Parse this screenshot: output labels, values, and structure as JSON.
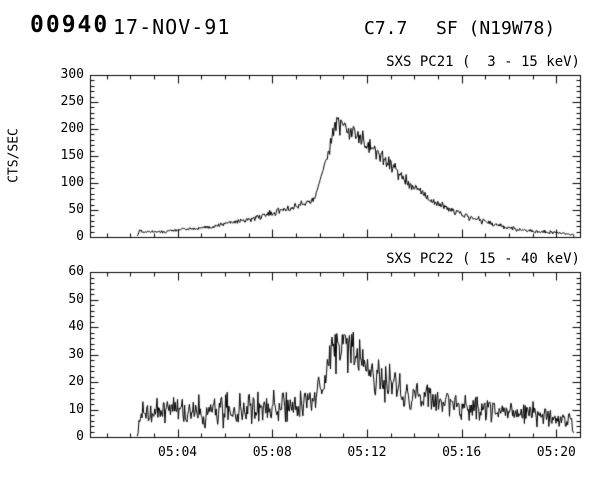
{
  "header": {
    "flare_id": "00940",
    "date": "17-NOV-91",
    "goes_class": "C7.7",
    "flare_type_position": "SF (N19W78)"
  },
  "chart_data": [
    {
      "type": "line",
      "title": "SXS PC21 (  3 - 15 keV)",
      "ylabel": "CTS/SEC",
      "ylim": [
        0,
        300
      ],
      "yticks": [
        0,
        50,
        100,
        150,
        200,
        250,
        300
      ],
      "ytick_labels": [
        "0",
        "50",
        "100",
        "150",
        "200",
        "250",
        "300"
      ],
      "y_minor_step": 10,
      "xlim_minutes": [
        0.3,
        21.0
      ],
      "x_units": "minutes after 05:00 UT",
      "xticks_minutes": [
        4,
        8,
        12,
        16,
        20
      ],
      "xtick_labels": [
        "05:04",
        "05:08",
        "05:12",
        "05:16",
        "05:20"
      ],
      "x_minor_step": 1,
      "show_x_labels": false,
      "grid": false,
      "series": [
        {
          "name": "SXS PC21 count rate",
          "envelope_t_value_noise": [
            [
              2.3,
              1,
              1
            ],
            [
              2.4,
              13,
              2
            ],
            [
              2.55,
              8,
              2
            ],
            [
              3.0,
              10,
              3
            ],
            [
              3.5,
              11,
              3
            ],
            [
              4.0,
              13,
              3
            ],
            [
              4.5,
              15,
              3
            ],
            [
              5.0,
              17,
              3
            ],
            [
              5.5,
              20,
              4
            ],
            [
              6.0,
              24,
              4
            ],
            [
              6.5,
              28,
              4
            ],
            [
              7.0,
              33,
              5
            ],
            [
              7.5,
              38,
              5
            ],
            [
              8.0,
              44,
              5
            ],
            [
              8.5,
              50,
              6
            ],
            [
              9.0,
              57,
              6
            ],
            [
              9.5,
              65,
              6
            ],
            [
              9.8,
              72,
              4
            ],
            [
              9.95,
              95,
              1
            ],
            [
              10.25,
              140,
              2
            ],
            [
              10.4,
              165,
              12
            ],
            [
              10.6,
              195,
              15
            ],
            [
              10.75,
              215,
              14
            ],
            [
              10.9,
              198,
              16
            ],
            [
              11.05,
              207,
              15
            ],
            [
              11.2,
              192,
              15
            ],
            [
              11.5,
              196,
              14
            ],
            [
              11.8,
              183,
              14
            ],
            [
              12.1,
              172,
              13
            ],
            [
              12.4,
              158,
              13
            ],
            [
              12.8,
              143,
              12
            ],
            [
              13.2,
              125,
              11
            ],
            [
              13.6,
              108,
              10
            ],
            [
              14.0,
              92,
              9
            ],
            [
              14.4,
              78,
              8
            ],
            [
              14.8,
              67,
              8
            ],
            [
              15.2,
              58,
              7
            ],
            [
              15.6,
              49,
              6
            ],
            [
              16.0,
              42,
              6
            ],
            [
              16.5,
              35,
              5
            ],
            [
              17.0,
              28,
              5
            ],
            [
              17.5,
              22,
              4
            ],
            [
              18.0,
              17,
              4
            ],
            [
              18.5,
              13,
              3
            ],
            [
              19.0,
              10,
              3
            ],
            [
              19.5,
              9,
              3
            ],
            [
              20.0,
              8,
              2
            ],
            [
              20.4,
              6,
              2
            ],
            [
              20.6,
              5,
              2
            ],
            [
              20.72,
              4,
              1
            ],
            [
              20.75,
              0,
              0
            ]
          ]
        }
      ]
    },
    {
      "type": "line",
      "title": "SXS PC22 ( 15 - 40 keV)",
      "ylabel": "",
      "ylim": [
        0,
        60
      ],
      "yticks": [
        0,
        10,
        20,
        30,
        40,
        50,
        60
      ],
      "ytick_labels": [
        "0",
        "10",
        "20",
        "30",
        "40",
        "50",
        "60"
      ],
      "y_minor_step": 2,
      "xlim_minutes": [
        0.3,
        21.0
      ],
      "x_units": "minutes after 05:00 UT",
      "xticks_minutes": [
        4,
        8,
        12,
        16,
        20
      ],
      "xtick_labels": [
        "05:04",
        "05:08",
        "05:12",
        "05:16",
        "05:20"
      ],
      "x_minor_step": 1,
      "show_x_labels": true,
      "grid": false,
      "series": [
        {
          "name": "SXS PC22 count rate",
          "envelope_t_value_noise": [
            [
              2.3,
              1,
              1
            ],
            [
              2.45,
              9,
              3
            ],
            [
              3.0,
              9,
              4
            ],
            [
              3.5,
              10,
              4
            ],
            [
              4.0,
              10,
              4
            ],
            [
              4.5,
              9,
              4
            ],
            [
              5.0,
              10,
              5
            ],
            [
              5.5,
              9,
              5
            ],
            [
              6.0,
              10,
              5
            ],
            [
              6.5,
              10,
              5
            ],
            [
              7.0,
              11,
              5
            ],
            [
              7.5,
              11,
              5
            ],
            [
              8.0,
              11,
              5
            ],
            [
              8.5,
              12,
              5
            ],
            [
              9.0,
              12,
              5
            ],
            [
              9.5,
              13,
              5
            ],
            [
              9.85,
              14,
              3
            ],
            [
              9.95,
              21,
              1
            ],
            [
              10.1,
              15,
              1
            ],
            [
              10.3,
              24,
              4
            ],
            [
              10.5,
              31,
              7
            ],
            [
              10.7,
              34,
              8
            ],
            [
              10.85,
              31,
              8
            ],
            [
              11.0,
              35,
              8
            ],
            [
              11.2,
              31,
              8
            ],
            [
              11.5,
              29,
              7
            ],
            [
              11.8,
              27,
              7
            ],
            [
              12.1,
              25,
              7
            ],
            [
              12.5,
              22,
              6
            ],
            [
              13.0,
              19,
              6
            ],
            [
              13.5,
              17,
              6
            ],
            [
              14.0,
              15,
              5
            ],
            [
              14.5,
              14,
              5
            ],
            [
              15.0,
              13,
              5
            ],
            [
              15.5,
              12,
              5
            ],
            [
              16.0,
              11,
              5
            ],
            [
              16.5,
              10,
              4
            ],
            [
              17.0,
              10,
              4
            ],
            [
              17.5,
              9,
              4
            ],
            [
              18.0,
              9,
              4
            ],
            [
              18.5,
              8,
              4
            ],
            [
              19.0,
              8,
              4
            ],
            [
              19.5,
              7,
              3
            ],
            [
              20.0,
              7,
              3
            ],
            [
              20.4,
              6,
              3
            ],
            [
              20.65,
              5,
              2
            ],
            [
              20.78,
              0,
              0
            ]
          ]
        }
      ]
    }
  ],
  "render": {
    "sample_step_minutes": 0.0333,
    "noise_seed": 421,
    "line_color": "#000000",
    "background_color": "#ffffff"
  }
}
